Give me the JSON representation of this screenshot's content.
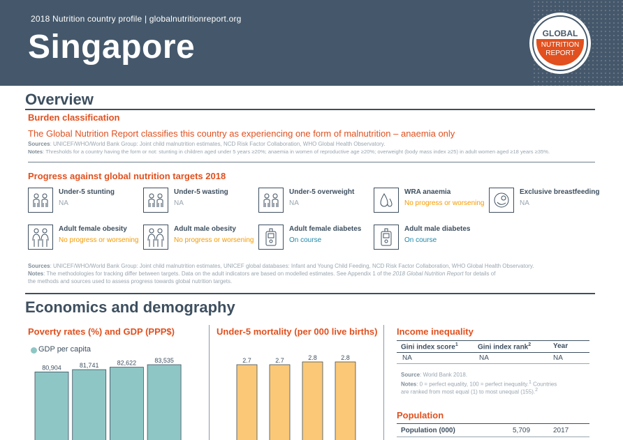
{
  "header": {
    "subtitle": "2018 Nutrition country profile  |  globalnutritionreport.org",
    "country": "Singapore",
    "logo": {
      "line1": "GLOBAL",
      "line2": "NUTRITION",
      "line3": "REPORT"
    }
  },
  "overview": {
    "title": "Overview",
    "burden": {
      "heading": "Burden classification",
      "statement": "The Global Nutrition Report classifies this country as experiencing one form of malnutrition – anaemia only",
      "sources_label": "Sources",
      "sources_text": ": UNICEF/WHO/World Bank Group: Joint child malnutrition estimates, NCD Risk Factor Collaboration, WHO Global Health Observatory.",
      "notes_label": "Notes",
      "notes_text": ": Thresholds for a country having the form or not: stunting in children aged under 5 years ≥20%; anaemia in women of reproductive age ≥20%; overweight (body mass index ≥25) in adult women aged ≥18 years ≥35%."
    },
    "progress": {
      "heading": "Progress against global nutrition targets 2018",
      "targets": [
        {
          "name": "Under-5 stunting",
          "status": "NA",
          "kind": "na",
          "icon": "children-icon"
        },
        {
          "name": "Under-5 wasting",
          "status": "NA",
          "kind": "na",
          "icon": "children-icon"
        },
        {
          "name": "Under-5 overweight",
          "status": "NA",
          "kind": "na",
          "icon": "children-icon"
        },
        {
          "name": "WRA anaemia",
          "status": "No progress or worsening",
          "kind": "bad",
          "icon": "blood-drop-icon"
        },
        {
          "name": "Exclusive breastfeeding",
          "status": "NA",
          "kind": "na",
          "icon": "breastfeeding-icon"
        },
        {
          "name": "Adult female obesity",
          "status": "No progress or worsening",
          "kind": "bad",
          "icon": "adults-icon"
        },
        {
          "name": "Adult male obesity",
          "status": "No progress or worsening",
          "kind": "bad",
          "icon": "adults-icon"
        },
        {
          "name": "Adult female diabetes",
          "status": "On course",
          "kind": "good",
          "icon": "glucose-meter-icon"
        },
        {
          "name": "Adult male diabetes",
          "status": "On course",
          "kind": "good",
          "icon": "glucose-meter-icon"
        }
      ],
      "sources_label": "Sources",
      "sources_text": ": UNICEF/WHO/World Bank Group: Joint child malnutrition estimates, UNICEF global databases: Infant and Young Child Feeding, NCD Risk Factor Collaboration, WHO Global Health Observatory.",
      "notes_label": "Notes",
      "notes_line1": ": The methodologies for tracking differ between targets. Data on the adult indicators are based on modelled estimates. See Appendix 1 of the ",
      "notes_italic": "2018 Global Nutrition Report",
      "notes_line1_end": " for details of",
      "notes_line2": "the methods and sources used to assess progress towards global nutrition targets."
    }
  },
  "economics": {
    "title": "Economics and demography",
    "poverty_heading": "Poverty rates (%) and GDP (PPP$)",
    "mortality_heading": "Under-5 mortality (per 000 live births)",
    "income_heading": "Income inequality",
    "income_table": {
      "headers": [
        "Gini index score",
        "Gini index rank",
        "Year"
      ],
      "header_sups": [
        "1",
        "2",
        ""
      ],
      "row": [
        "NA",
        "NA",
        "NA"
      ]
    },
    "income_source_label": "Source",
    "income_source_text": ": World Bank 2018.",
    "income_notes_label": "Notes",
    "income_notes_line1": ": 0 = perfect equality, 100 = perfect inequality.",
    "income_notes_sup1": "1",
    "income_notes_line1_end": " Countries",
    "income_notes_line2": "are ranked from most equal (1) to most unequal (155).",
    "income_notes_sup2": "2",
    "population_heading": "Population",
    "population_table": {
      "label": "Population (000)",
      "value": "5,709",
      "year": "2017"
    }
  },
  "chart_data": [
    {
      "type": "bar",
      "series": [
        {
          "name": "GDP per capita",
          "values": [
            80904,
            81741,
            82622,
            83535
          ]
        }
      ],
      "data_labels": [
        "80,904",
        "81,741",
        "82,622",
        "83,535"
      ],
      "colors": [
        "#8ec6c5"
      ]
    },
    {
      "type": "bar",
      "series": [
        {
          "values": [
            2.7,
            2.7,
            2.8,
            2.8
          ]
        }
      ],
      "data_labels": [
        "2.7",
        "2.7",
        "2.8",
        "2.8"
      ],
      "colors": [
        "#fbc877"
      ]
    }
  ]
}
